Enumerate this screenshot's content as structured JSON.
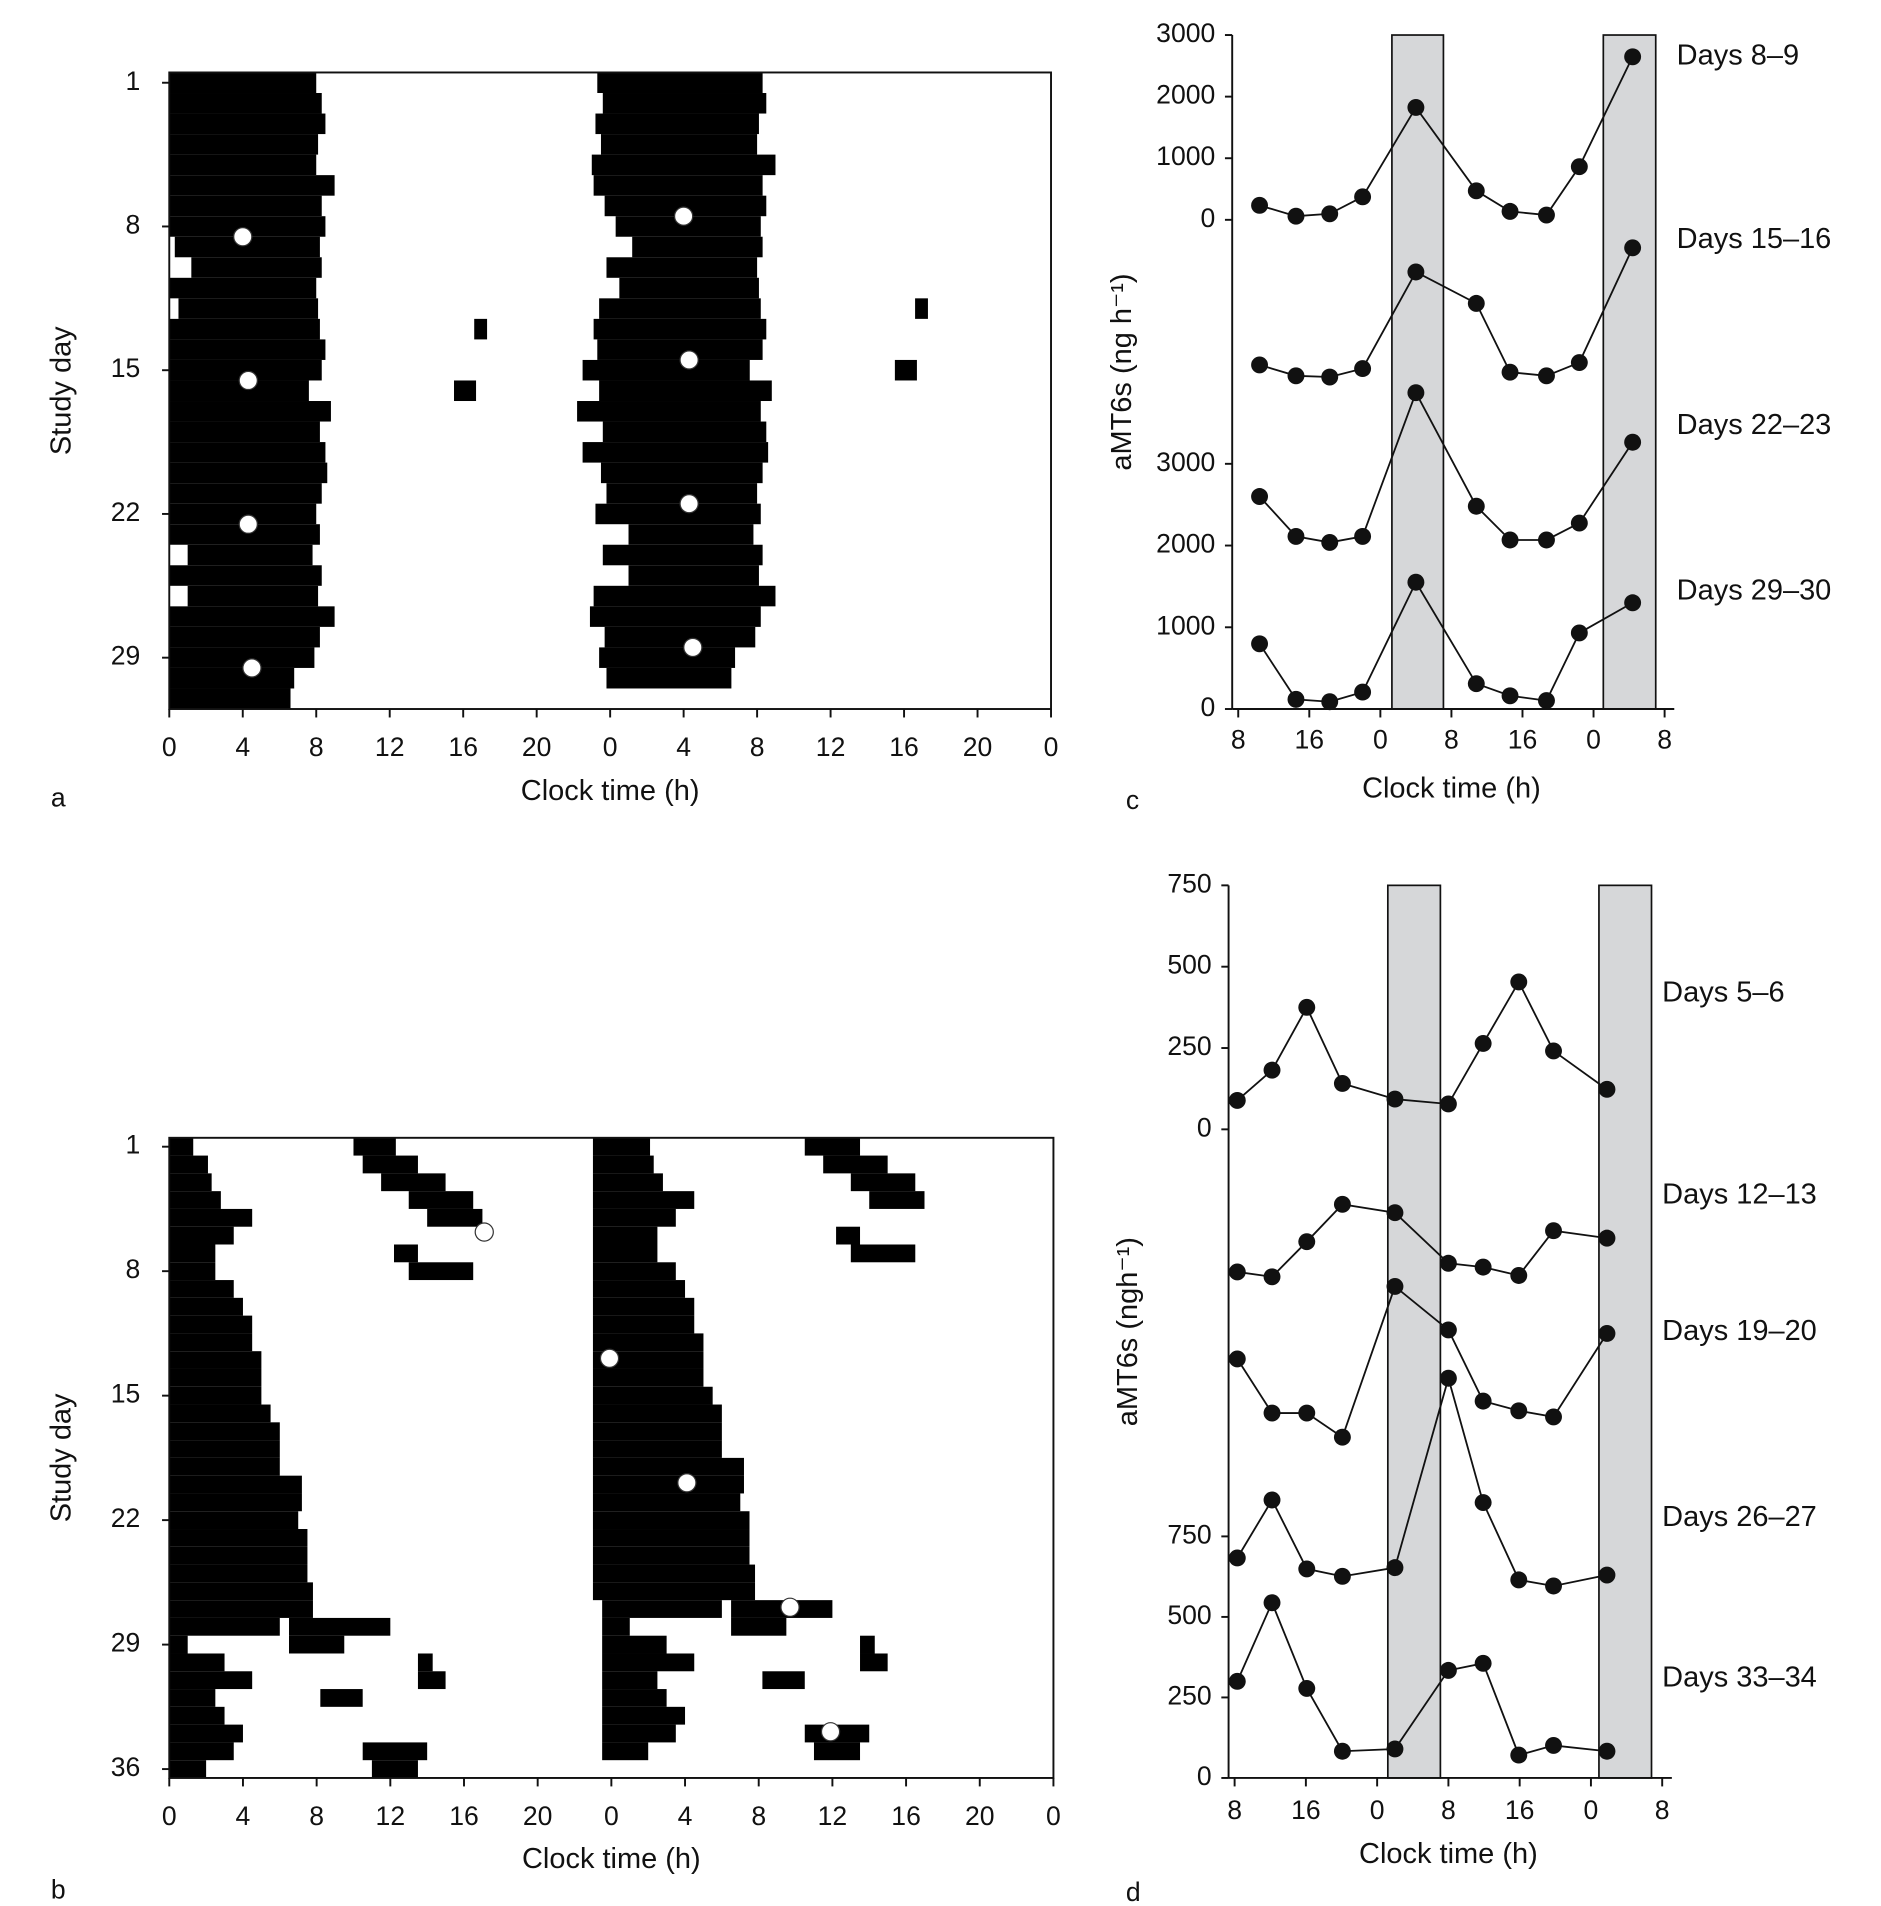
{
  "chart_data": [
    {
      "type": "actogram",
      "panel_label": "a",
      "x_label": "Clock time (h)",
      "y_label": "Study day",
      "color": "#000000",
      "xlim": [
        0,
        48
      ],
      "ylim": [
        0.5,
        31.5
      ],
      "xticks": [
        0,
        4,
        8,
        12,
        16,
        20,
        {
          "value": 24,
          "label": "0"
        },
        {
          "value": 28,
          "label": "4"
        },
        {
          "value": 32,
          "label": "8"
        },
        {
          "value": 36,
          "label": "12"
        },
        {
          "value": 40,
          "label": "16"
        },
        {
          "value": 44,
          "label": "20"
        },
        {
          "value": 48,
          "label": "0"
        }
      ],
      "yticks": [
        1,
        8,
        15,
        22,
        29
      ],
      "episodes": [
        [
          1,
          0,
          8.0
        ],
        [
          2,
          -0.7,
          8.3
        ],
        [
          3,
          -0.4,
          8.5
        ],
        [
          4,
          -0.8,
          8.1
        ],
        [
          5,
          -0.5,
          8.0
        ],
        [
          6,
          -1.0,
          9.0
        ],
        [
          7,
          -0.9,
          8.3
        ],
        [
          8,
          -0.3,
          8.5
        ],
        [
          9,
          0.3,
          8.2
        ],
        [
          10,
          1.2,
          8.3
        ],
        [
          11,
          -0.2,
          8.0
        ],
        [
          12,
          0.5,
          8.1
        ],
        [
          13,
          -0.6,
          8.2
        ],
        [
          14,
          -0.9,
          8.5
        ],
        [
          15,
          -0.7,
          8.3
        ],
        [
          16,
          -1.5,
          7.6
        ],
        [
          17,
          -0.6,
          8.8
        ],
        [
          18,
          -1.8,
          8.2
        ],
        [
          19,
          -0.4,
          8.5
        ],
        [
          20,
          -1.5,
          8.6
        ],
        [
          21,
          -0.5,
          8.3
        ],
        [
          22,
          -0.2,
          8.0
        ],
        [
          23,
          -0.8,
          8.2
        ],
        [
          24,
          1.0,
          7.8
        ],
        [
          25,
          -0.4,
          8.3
        ],
        [
          26,
          1.0,
          8.1
        ],
        [
          27,
          -0.9,
          9.0
        ],
        [
          28,
          -1.1,
          8.2
        ],
        [
          29,
          -0.3,
          7.9
        ],
        [
          30,
          -0.6,
          6.8
        ],
        [
          31,
          -0.2,
          6.6
        ],
        [
          13,
          16.6,
          17.3
        ],
        [
          16,
          15.5,
          16.7
        ]
      ],
      "markers": [
        [
          8.5,
          4.0
        ],
        [
          7.5,
          28.0
        ],
        [
          15.5,
          4.3
        ],
        [
          14.5,
          28.3
        ],
        [
          22.5,
          4.3
        ],
        [
          21.5,
          28.3
        ],
        [
          29.5,
          4.5
        ],
        [
          28.5,
          28.5
        ]
      ]
    },
    {
      "type": "actogram",
      "panel_label": "b",
      "x_label": "Clock time (h)",
      "y_label": "Study day",
      "color": "#000000",
      "xlim": [
        0,
        48
      ],
      "ylim": [
        0.5,
        36.5
      ],
      "xticks": [
        0,
        4,
        8,
        12,
        16,
        20,
        {
          "value": 24,
          "label": "0"
        },
        {
          "value": 28,
          "label": "4"
        },
        {
          "value": 32,
          "label": "8"
        },
        {
          "value": 36,
          "label": "12"
        },
        {
          "value": 40,
          "label": "16"
        },
        {
          "value": 44,
          "label": "20"
        },
        {
          "value": 48,
          "label": "0"
        }
      ],
      "yticks": [
        1,
        8,
        15,
        22,
        29,
        36
      ],
      "episodes": [
        [
          1,
          0,
          1.3
        ],
        [
          1,
          10,
          12.3
        ],
        [
          2,
          -1,
          2.1
        ],
        [
          2,
          10.5,
          13.5
        ],
        [
          3,
          -1,
          2.3
        ],
        [
          3,
          11.5,
          15
        ],
        [
          4,
          -1,
          2.8
        ],
        [
          4,
          13,
          16.5
        ],
        [
          5,
          -1,
          4.5
        ],
        [
          5,
          14,
          17
        ],
        [
          6,
          -1,
          3.5
        ],
        [
          7,
          -1,
          2.5
        ],
        [
          7,
          12.2,
          13.5
        ],
        [
          8,
          -1,
          2.5
        ],
        [
          8,
          13,
          16.5
        ],
        [
          9,
          -1,
          3.5
        ],
        [
          10,
          -1,
          4
        ],
        [
          11,
          -1,
          4.5
        ],
        [
          12,
          -1,
          4.5
        ],
        [
          13,
          -1,
          5
        ],
        [
          14,
          -1,
          5
        ],
        [
          15,
          -1,
          5
        ],
        [
          16,
          -1,
          5.5
        ],
        [
          17,
          -1,
          6
        ],
        [
          18,
          -1,
          6
        ],
        [
          19,
          -1,
          6
        ],
        [
          20,
          -1,
          7.2
        ],
        [
          21,
          -1,
          7.2
        ],
        [
          22,
          -1,
          7
        ],
        [
          23,
          -1,
          7.5
        ],
        [
          24,
          -1,
          7.5
        ],
        [
          25,
          -1,
          7.5
        ],
        [
          26,
          -1,
          7.8
        ],
        [
          27,
          -1,
          7.8
        ],
        [
          28,
          -0.5,
          6
        ],
        [
          28,
          6.5,
          12
        ],
        [
          29,
          -0.5,
          1
        ],
        [
          29,
          6.5,
          9.5
        ],
        [
          30,
          -0.5,
          3
        ],
        [
          30,
          13.5,
          14.3
        ],
        [
          31,
          -0.5,
          4.5
        ],
        [
          31,
          13.5,
          15
        ],
        [
          32,
          -0.5,
          2.5
        ],
        [
          32,
          8.2,
          10.5
        ],
        [
          33,
          -0.5,
          3
        ],
        [
          34,
          -0.5,
          4
        ],
        [
          35,
          -0.5,
          3.5
        ],
        [
          35,
          10.5,
          14
        ],
        [
          36,
          -0.5,
          2
        ],
        [
          36,
          11,
          13.5
        ]
      ],
      "markers": [
        [
          12.9,
          23.9
        ],
        [
          19.9,
          28.1
        ],
        [
          5.8,
          17.1
        ],
        [
          26.9,
          33.7
        ],
        [
          33.9,
          35.9
        ]
      ]
    },
    {
      "type": "line",
      "panel_label": "c",
      "x_label": "Clock time (h)",
      "y_label": "aMT6s (ng h⁻¹)",
      "xlim": [
        8,
        56
      ],
      "xticks": [
        8,
        16,
        {
          "value": 24,
          "label": "0"
        },
        {
          "value": 32,
          "label": "8"
        },
        {
          "value": 40,
          "label": "16"
        },
        {
          "value": 48,
          "label": "0"
        },
        {
          "value": 56,
          "label": "8"
        }
      ],
      "ylim": [
        0,
        3000
      ],
      "yticks": [
        0,
        1000,
        2000,
        3000
      ],
      "y2lim": [
        0,
        3000
      ],
      "y2ticks": [
        0,
        1000,
        2000,
        3000
      ],
      "shading": [
        [
          25.3,
          31.1
        ],
        [
          49.1,
          55.0
        ]
      ],
      "x": [
        10.4,
        14.5,
        18.3,
        22.0,
        28.0,
        34.8,
        38.6,
        42.7,
        46.4,
        52.4
      ],
      "series": [
        {
          "name": "Days 8–9",
          "color": "#111111",
          "values": [
            235,
            59,
            98,
            373,
            1824,
            471,
            137,
            78,
            863,
            2647
          ]
        },
        {
          "name": "Days 15–16",
          "color": "#111111",
          "axis": "y2",
          "values": [
            4210,
            4077,
            4062,
            4165,
            5347,
            4963,
            4121,
            4077,
            4239,
            5643
          ]
        },
        {
          "name": "Days 22–23",
          "color": "#111111",
          "axis": "y2",
          "values": [
            2600,
            2112,
            2038,
            2112,
            3870,
            2481,
            2068,
            2068,
            2275,
            3264
          ]
        },
        {
          "name": "Days 29–30",
          "color": "#111111",
          "axis": "y2",
          "values": [
            798,
            118,
            89,
            207,
            1551,
            310,
            162,
            103,
            931,
            1300
          ]
        }
      ]
    },
    {
      "type": "line",
      "panel_label": "d",
      "x_label": "Clock time (h)",
      "y_label": "aMT6s (ngh⁻¹)",
      "xlim": [
        8,
        56
      ],
      "xticks": [
        8,
        16,
        {
          "value": 24,
          "label": "0"
        },
        {
          "value": 32,
          "label": "8"
        },
        {
          "value": 40,
          "label": "16"
        },
        {
          "value": 48,
          "label": "0"
        },
        {
          "value": 56,
          "label": "8"
        }
      ],
      "ylim": [
        0,
        750
      ],
      "yticks": [
        0,
        250,
        500,
        750
      ],
      "y2lim": [
        0,
        750
      ],
      "y2ticks": [
        0,
        250,
        500,
        750
      ],
      "shading": [
        [
          25.2,
          31.1
        ],
        [
          48.9,
          54.8
        ]
      ],
      "x": [
        8.3,
        12.2,
        16.1,
        20.1,
        26.0,
        32.0,
        35.9,
        39.9,
        43.8,
        49.8
      ],
      "series": [
        {
          "name": "Days 5–6",
          "color": "#111111",
          "values": [
            89,
            182,
            375,
            141,
            93,
            78,
            264,
            453,
            241,
            123
          ]
        },
        {
          "name": "Days 12–13",
          "color": "#111111",
          "axis": "y2",
          "values": [
            1571,
            1556,
            1665,
            1781,
            1755,
            1598,
            1586,
            1560,
            1699,
            1676
          ]
        },
        {
          "name": "Days 19–20",
          "color": "#111111",
          "axis": "y2",
          "values": [
            1301,
            1133,
            1133,
            1058,
            1526,
            1391,
            1170,
            1140,
            1121,
            1380
          ]
        },
        {
          "name": "Days 26–27",
          "color": "#111111",
          "axis": "y2",
          "values": [
            683,
            863,
            649,
            626,
            653,
            1241,
            855,
            615,
            596,
            630
          ]
        },
        {
          "name": "Days 33–34",
          "color": "#111111",
          "axis": "y2",
          "values": [
            300,
            544,
            278,
            83,
            90,
            334,
            356,
            71,
            101,
            83
          ]
        }
      ]
    }
  ]
}
